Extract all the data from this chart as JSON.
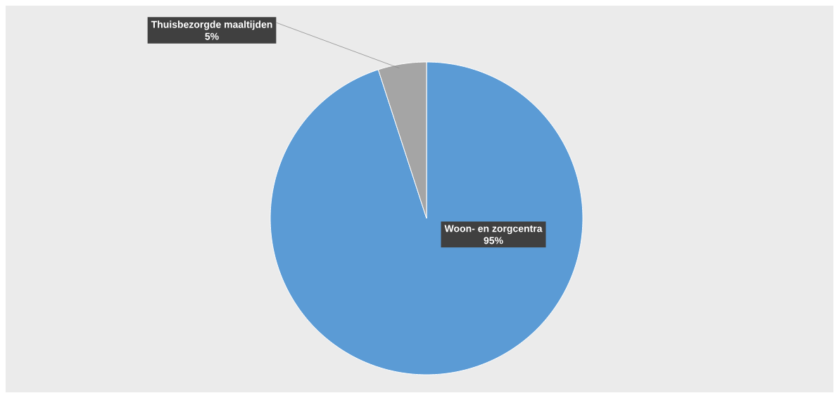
{
  "chart_data": {
    "type": "pie",
    "categories": [
      "Woon- en zorgcentra",
      "Thuisbezorgde maaltijden"
    ],
    "values": [
      95,
      5
    ],
    "colors": [
      "#5b9bd5",
      "#a5a5a5"
    ],
    "value_labels": [
      "95%",
      "5%"
    ]
  }
}
